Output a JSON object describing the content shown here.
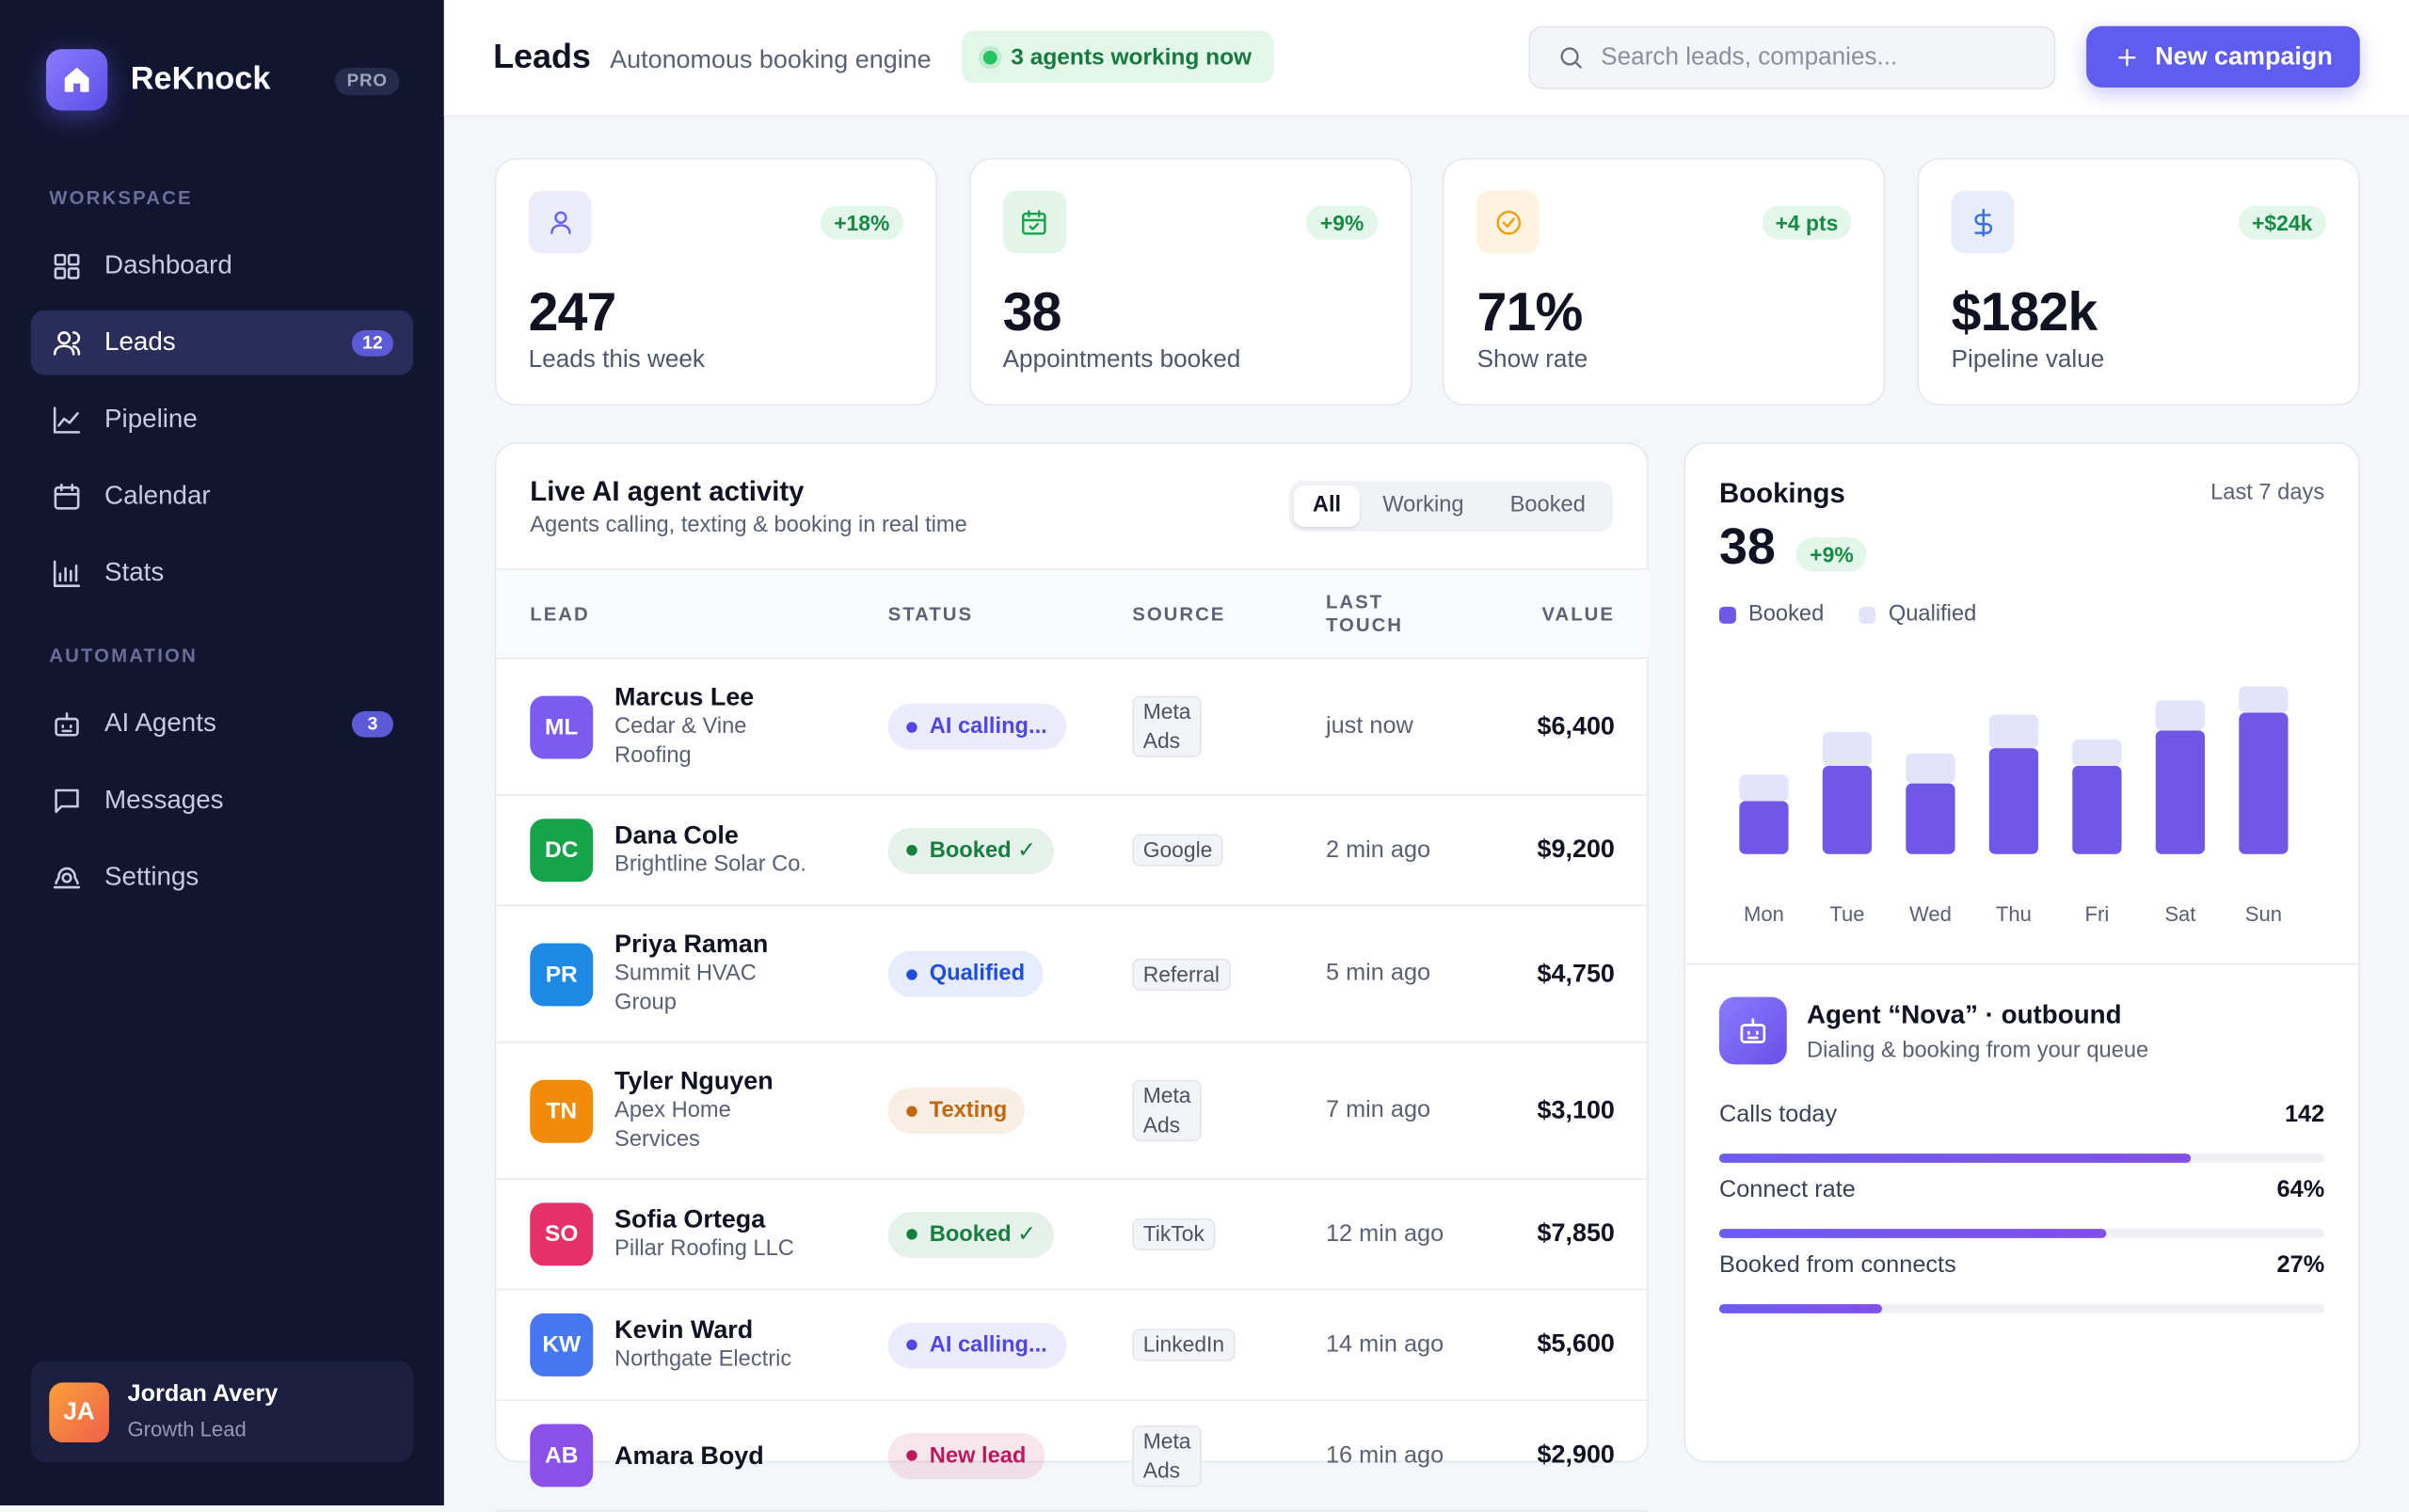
{
  "sidebar": {
    "brand": "ReKnock",
    "plan": "PRO",
    "sections": [
      {
        "label": "WORKSPACE",
        "items": [
          {
            "label": "Dashboard"
          },
          {
            "label": "Leads",
            "badge": "12",
            "active": true
          },
          {
            "label": "Pipeline"
          },
          {
            "label": "Calendar"
          },
          {
            "label": "Stats"
          }
        ]
      },
      {
        "label": "AUTOMATION",
        "items": [
          {
            "label": "AI Agents",
            "badge": "3"
          },
          {
            "label": "Messages"
          },
          {
            "label": "Settings"
          }
        ]
      }
    ],
    "user": {
      "initials": "JA",
      "name": "Jordan Avery",
      "role": "Growth Lead"
    }
  },
  "header": {
    "title": "Leads",
    "subtitle": "Autonomous booking engine",
    "status": "3 agents working now",
    "search_placeholder": "Search leads, companies...",
    "button": "New campaign"
  },
  "stats": [
    {
      "value": "247",
      "label": "Leads this week",
      "delta": "+18%",
      "color": "#6366f1"
    },
    {
      "value": "38",
      "label": "Appointments booked",
      "delta": "+9%",
      "color": "#16a34a"
    },
    {
      "value": "71%",
      "label": "Show rate",
      "delta": "+4 pts",
      "color": "#f59e0b"
    },
    {
      "value": "$182k",
      "label": "Pipeline value",
      "delta": "+$24k",
      "color": "#3b6fe0"
    }
  ],
  "activity": {
    "title": "Live AI agent activity",
    "subtitle": "Agents calling, texting & booking in real time",
    "filters": [
      "All",
      "Working",
      "Booked"
    ],
    "columns": [
      "LEAD",
      "STATUS",
      "SOURCE",
      "LAST TOUCH",
      "VALUE"
    ],
    "rows": [
      {
        "initials": "ML",
        "color": "#7c5cf0",
        "name": "Marcus Lee",
        "company": "Cedar & Vine Roofing",
        "status": "AI calling...",
        "status_color": "#4f46e5",
        "source": "Meta Ads",
        "last_touch": "just now",
        "value": "$6,400"
      },
      {
        "initials": "DC",
        "color": "#16a34a",
        "name": "Dana Cole",
        "company": "Brightline Solar Co.",
        "status": "Booked ✓",
        "status_color": "#15803d",
        "source": "Google",
        "last_touch": "2 min ago",
        "value": "$9,200"
      },
      {
        "initials": "PR",
        "color": "#1e88e5",
        "name": "Priya Raman",
        "company": "Summit HVAC Group",
        "status": "Qualified",
        "status_color": "#1d4ed8",
        "source": "Referral",
        "last_touch": "5 min ago",
        "value": "$4,750"
      },
      {
        "initials": "TN",
        "color": "#f08c0a",
        "name": "Tyler Nguyen",
        "company": "Apex Home Services",
        "status": "Texting",
        "status_color": "#c2680c",
        "source": "Meta Ads",
        "last_touch": "7 min ago",
        "value": "$3,100"
      },
      {
        "initials": "SO",
        "color": "#e5306a",
        "name": "Sofia Ortega",
        "company": "Pillar Roofing LLC",
        "status": "Booked ✓",
        "status_color": "#15803d",
        "source": "TikTok",
        "last_touch": "12 min ago",
        "value": "$7,850"
      },
      {
        "initials": "KW",
        "color": "#4676f0",
        "name": "Kevin Ward",
        "company": "Northgate Electric",
        "status": "AI calling...",
        "status_color": "#4f46e5",
        "source": "LinkedIn",
        "last_touch": "14 min ago",
        "value": "$5,600"
      },
      {
        "initials": "AB",
        "color": "#8b50e8",
        "name": "Amara Boyd",
        "status": "New lead",
        "status_color": "#be185d",
        "source": "Meta Ads",
        "last_touch": "16 min ago",
        "value": "$2,900"
      }
    ]
  },
  "bookings": {
    "title": "Bookings",
    "period": "Last 7 days",
    "total": "38",
    "delta": "+9%",
    "chart_data": {
      "type": "bar",
      "stacked": true,
      "categories": [
        "Mon",
        "Tue",
        "Wed",
        "Thu",
        "Fri",
        "Sat",
        "Sun"
      ],
      "series": [
        {
          "name": "Booked",
          "color": "#7057e8",
          "values": [
            3,
            5,
            4,
            6,
            5,
            7,
            8
          ]
        },
        {
          "name": "Qualified",
          "color": "#e3e3fb",
          "values": [
            1.5,
            1.9,
            1.7,
            1.9,
            1.5,
            1.7,
            1.5
          ]
        }
      ],
      "ylim": [
        0,
        10
      ]
    }
  },
  "agent": {
    "title": "Agent “Nova” · outbound",
    "subtitle": "Dialing & booking from your queue",
    "xlim": [
      0,
      100
    ],
    "metrics": [
      {
        "label": "Calls today",
        "value": 142
      },
      {
        "label": "Connect rate",
        "value": 64,
        "value_label": "64%"
      },
      {
        "label": "Booked from connects",
        "value": 27,
        "value_label": "27%"
      }
    ]
  }
}
